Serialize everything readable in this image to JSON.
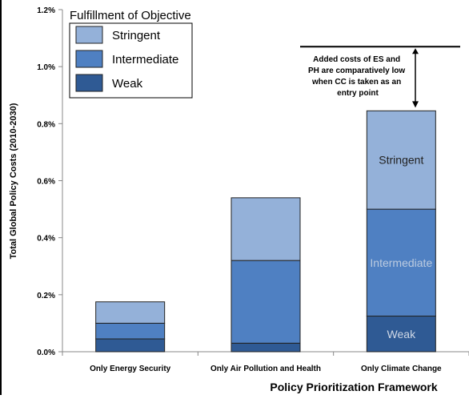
{
  "chart_data": {
    "type": "bar",
    "stacked": true,
    "categories": [
      "Only Energy Security",
      "Only Air Pollution and Health",
      "Only Climate Change"
    ],
    "series": [
      {
        "name": "Weak",
        "values": [
          0.045,
          0.03,
          0.125
        ],
        "color": "#2f5a94"
      },
      {
        "name": "Intermediate",
        "values": [
          0.055,
          0.29,
          0.375
        ],
        "color": "#4f80c2"
      },
      {
        "name": "Stringent",
        "values": [
          0.075,
          0.22,
          0.345
        ],
        "color": "#94b1d9"
      }
    ],
    "xlabel": "Policy Prioritization Framework",
    "ylabel": "Total Global Policy Costs (2010-2030)",
    "ylim": [
      0,
      1.2
    ],
    "yticks": [
      0,
      0.2,
      0.4,
      0.6,
      0.8,
      1.0,
      1.2
    ],
    "ytick_labels": [
      "0.0%",
      "0.2%",
      "0.4%",
      "0.6%",
      "0.8%",
      "1.0%",
      "1.2%"
    ],
    "legend": {
      "title": "Fulfillment of Objective",
      "placement": "top-left",
      "entries": [
        "Stringent",
        "Intermediate",
        "Weak"
      ]
    },
    "bar_labels": [
      "Stringent",
      "Intermediate",
      "Weak"
    ],
    "annotation": {
      "text_lines": [
        "Added costs of ES and",
        "PH are comparatively low",
        "when CC is taken as an",
        "entry point"
      ],
      "reference_value": 1.07
    },
    "grid": false
  }
}
